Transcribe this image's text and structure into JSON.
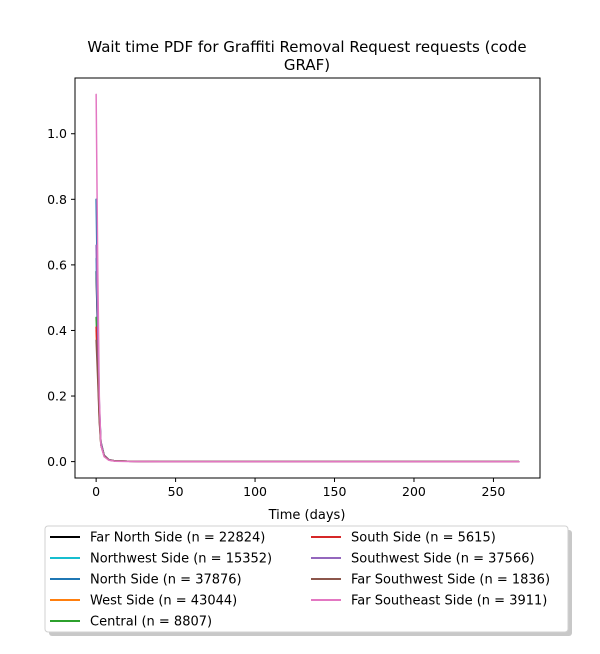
{
  "chart_data": {
    "type": "line",
    "title": "Wait time PDF for Graffiti Removal Request  requests (code GRAF)",
    "title_lines": [
      "Wait time PDF for Graffiti Removal Request  requests (code",
      "GRAF)"
    ],
    "xlabel": "Time (days)",
    "ylabel": "",
    "xlim": [
      -13.3,
      279.3
    ],
    "ylim": [
      -0.05,
      1.17
    ],
    "xticks": [
      0,
      50,
      100,
      150,
      200,
      250
    ],
    "xtick_labels": [
      "0",
      "50",
      "100",
      "150",
      "200",
      "250"
    ],
    "yticks": [
      0.0,
      0.2,
      0.4,
      0.6,
      0.8,
      1.0
    ],
    "ytick_labels": [
      "0.0",
      "0.2",
      "0.4",
      "0.6",
      "0.8",
      "1.0"
    ],
    "grid": false,
    "legend_position": "below chart, two columns",
    "series": [
      {
        "name": "Far North Side (n = 22824)",
        "color": "#000000",
        "x": [
          0,
          1,
          2,
          3,
          5,
          8,
          12,
          20,
          40,
          80,
          150,
          266
        ],
        "y": [
          0.58,
          0.36,
          0.16,
          0.06,
          0.02,
          0.005,
          0.002,
          0.001,
          0.0,
          0.0,
          0.0,
          0.0
        ]
      },
      {
        "name": "Northwest Side (n = 15352)",
        "color": "#17becf",
        "x": [
          0,
          1,
          2,
          3,
          5,
          8,
          12,
          20,
          40,
          80,
          150,
          266
        ],
        "y": [
          0.62,
          0.38,
          0.15,
          0.05,
          0.018,
          0.005,
          0.002,
          0.001,
          0.0,
          0.0,
          0.0,
          0.0
        ]
      },
      {
        "name": "North Side (n = 37876)",
        "color": "#1f77b4",
        "x": [
          0,
          1,
          2,
          3,
          5,
          8,
          12,
          20,
          40,
          80,
          150,
          266
        ],
        "y": [
          0.8,
          0.45,
          0.18,
          0.06,
          0.02,
          0.006,
          0.002,
          0.001,
          0.0,
          0.0,
          0.0,
          0.0
        ]
      },
      {
        "name": "West Side (n = 43044)",
        "color": "#ff7f0e",
        "x": [
          0,
          1,
          2,
          3,
          5,
          8,
          12,
          20,
          40,
          80,
          150,
          266
        ],
        "y": [
          0.4,
          0.3,
          0.15,
          0.06,
          0.02,
          0.006,
          0.002,
          0.001,
          0.0,
          0.0,
          0.0,
          0.0
        ]
      },
      {
        "name": "Central (n = 8807)",
        "color": "#2ca02c",
        "x": [
          0,
          1,
          2,
          3,
          5,
          8,
          12,
          20,
          40,
          80,
          150,
          266
        ],
        "y": [
          0.44,
          0.3,
          0.14,
          0.06,
          0.02,
          0.006,
          0.002,
          0.001,
          0.0,
          0.0,
          0.0,
          0.0
        ]
      },
      {
        "name": "South Side (n = 5615)",
        "color": "#d62728",
        "x": [
          0,
          1,
          2,
          3,
          5,
          8,
          12,
          20,
          40,
          80,
          150,
          266
        ],
        "y": [
          0.41,
          0.28,
          0.13,
          0.05,
          0.018,
          0.005,
          0.002,
          0.001,
          0.0,
          0.0,
          0.0,
          0.0
        ]
      },
      {
        "name": "Southwest Side (n = 37566)",
        "color": "#9467bd",
        "x": [
          0,
          1,
          2,
          3,
          5,
          8,
          12,
          20,
          40,
          80,
          150,
          266
        ],
        "y": [
          0.66,
          0.4,
          0.17,
          0.06,
          0.02,
          0.006,
          0.002,
          0.001,
          0.0,
          0.0,
          0.0,
          0.0
        ]
      },
      {
        "name": "Far Southwest Side (n = 1836)",
        "color": "#8c564b",
        "x": [
          0,
          1,
          2,
          3,
          5,
          8,
          12,
          20,
          40,
          80,
          150,
          266
        ],
        "y": [
          0.37,
          0.25,
          0.12,
          0.05,
          0.018,
          0.005,
          0.002,
          0.001,
          0.0,
          0.0,
          0.0,
          0.0
        ]
      },
      {
        "name": "Far Southeast Side (n = 3911)",
        "color": "#e377c2",
        "x": [
          0,
          1,
          2,
          3,
          5,
          8,
          12,
          20,
          40,
          80,
          150,
          266
        ],
        "y": [
          1.12,
          0.6,
          0.2,
          0.05,
          0.015,
          0.004,
          0.001,
          0.0005,
          0.0,
          0.0,
          0.0,
          0.0
        ]
      }
    ]
  }
}
